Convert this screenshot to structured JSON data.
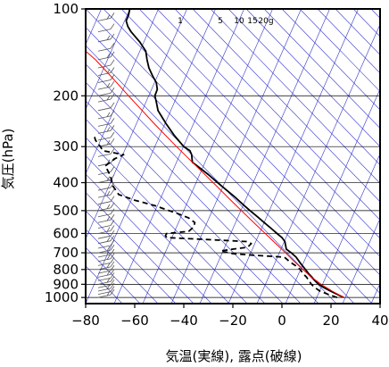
{
  "chart_data": {
    "type": "line",
    "title": "",
    "xlabel": "気温(実線), 露点(破線)",
    "ylabel": "気圧(hPa)",
    "y_scale": "log",
    "xlim": [
      -80,
      40
    ],
    "ylim": [
      1050,
      100
    ],
    "x_ticks": [
      -80,
      -60,
      -40,
      -20,
      0,
      20,
      40
    ],
    "y_ticks": [
      100,
      200,
      300,
      400,
      500,
      600,
      700,
      800,
      900,
      1000
    ],
    "mixing_ratio_labels": [
      "1",
      "5",
      "10",
      "15",
      "20g"
    ],
    "colors": {
      "temperature": "#000000",
      "dewpoint": "#000000",
      "parcel": "#ff0000",
      "guide_lines": "#3333cc",
      "wind_barbs": "#555555"
    },
    "series": [
      {
        "name": "temperature",
        "style": "solid",
        "points": [
          [
            1000,
            25.2
          ],
          [
            975,
            22.5
          ],
          [
            950,
            19.8
          ],
          [
            925,
            17.2
          ],
          [
            900,
            15.0
          ],
          [
            875,
            13.5
          ],
          [
            850,
            12.2
          ],
          [
            825,
            10.8
          ],
          [
            800,
            9.6
          ],
          [
            775,
            8.3
          ],
          [
            750,
            7.0
          ],
          [
            725,
            5.8
          ],
          [
            700,
            3.8
          ],
          [
            680,
            1.8
          ],
          [
            660,
            1.5
          ],
          [
            640,
            1.2
          ],
          [
            620,
            0.0
          ],
          [
            600,
            -2.0
          ],
          [
            575,
            -4.5
          ],
          [
            550,
            -7.2
          ],
          [
            525,
            -10.0
          ],
          [
            500,
            -13.0
          ],
          [
            475,
            -16.0
          ],
          [
            450,
            -19.0
          ],
          [
            425,
            -22.5
          ],
          [
            400,
            -26.2
          ],
          [
            375,
            -30.0
          ],
          [
            350,
            -34.5
          ],
          [
            340,
            -36.5
          ],
          [
            320,
            -36.8
          ],
          [
            310,
            -37.5
          ],
          [
            300,
            -40.0
          ],
          [
            275,
            -43.8
          ],
          [
            250,
            -47.2
          ],
          [
            225,
            -50.5
          ],
          [
            210,
            -51.2
          ],
          [
            200,
            -51.8
          ],
          [
            190,
            -50.8
          ],
          [
            180,
            -51.2
          ],
          [
            170,
            -52.8
          ],
          [
            160,
            -54.2
          ],
          [
            150,
            -55.0
          ],
          [
            140,
            -55.5
          ],
          [
            130,
            -58.0
          ],
          [
            120,
            -61.5
          ],
          [
            115,
            -62.8
          ],
          [
            110,
            -63.5
          ],
          [
            105,
            -62.5
          ],
          [
            100,
            -62.0
          ]
        ]
      },
      {
        "name": "dewpoint",
        "style": "dashed",
        "points": [
          [
            1000,
            22.5
          ],
          [
            975,
            18.8
          ],
          [
            950,
            15.5
          ],
          [
            925,
            13.5
          ],
          [
            900,
            12.0
          ],
          [
            875,
            11.0
          ],
          [
            850,
            10.0
          ],
          [
            825,
            8.5
          ],
          [
            800,
            7.5
          ],
          [
            775,
            5.5
          ],
          [
            750,
            3.0
          ],
          [
            725,
            1.0
          ],
          [
            715,
            -10.0
          ],
          [
            705,
            -20.0
          ],
          [
            700,
            -21.5
          ],
          [
            690,
            -25.0
          ],
          [
            680,
            -20.0
          ],
          [
            670,
            -14.0
          ],
          [
            650,
            -12.5
          ],
          [
            640,
            -14.5
          ],
          [
            630,
            -30.0
          ],
          [
            620,
            -47.0
          ],
          [
            610,
            -47.5
          ],
          [
            600,
            -47.0
          ],
          [
            590,
            -38.0
          ],
          [
            570,
            -36.0
          ],
          [
            550,
            -35.5
          ],
          [
            530,
            -38.0
          ],
          [
            510,
            -43.0
          ],
          [
            500,
            -46.0
          ],
          [
            480,
            -52.0
          ],
          [
            460,
            -60.0
          ],
          [
            440,
            -66.5
          ],
          [
            410,
            -69.0
          ],
          [
            390,
            -69.5
          ],
          [
            370,
            -70.5
          ],
          [
            350,
            -72.0
          ],
          [
            330,
            -68.0
          ],
          [
            320,
            -64.5
          ],
          [
            310,
            -73.0
          ],
          [
            300,
            -74.0
          ],
          [
            285,
            -76.0
          ],
          [
            275,
            -76.5
          ]
        ]
      },
      {
        "name": "parcel",
        "style": "solid",
        "points": [
          [
            1000,
            25.2
          ],
          [
            950,
            20.5
          ],
          [
            900,
            16.0
          ],
          [
            850,
            12.0
          ],
          [
            800,
            8.5
          ],
          [
            750,
            5.0
          ],
          [
            700,
            1.5
          ],
          [
            650,
            -2.5
          ],
          [
            600,
            -6.8
          ],
          [
            550,
            -11.5
          ],
          [
            500,
            -16.5
          ],
          [
            450,
            -22.0
          ],
          [
            400,
            -28.0
          ],
          [
            350,
            -35.0
          ],
          [
            300,
            -43.0
          ],
          [
            250,
            -52.0
          ],
          [
            200,
            -62.5
          ],
          [
            170,
            -70.0
          ],
          [
            150,
            -76.0
          ],
          [
            140,
            -80.0
          ]
        ]
      }
    ],
    "wind_profile_pressures": [
      1000,
      975,
      950,
      925,
      900,
      875,
      850,
      825,
      800,
      775,
      750,
      725,
      700,
      675,
      650,
      625,
      600,
      575,
      550,
      525,
      500,
      475,
      450,
      425,
      400,
      375,
      350,
      325,
      300,
      285,
      270,
      255,
      240,
      225,
      210,
      200,
      190,
      180,
      170,
      160,
      150,
      140,
      130,
      120,
      110,
      100
    ]
  }
}
